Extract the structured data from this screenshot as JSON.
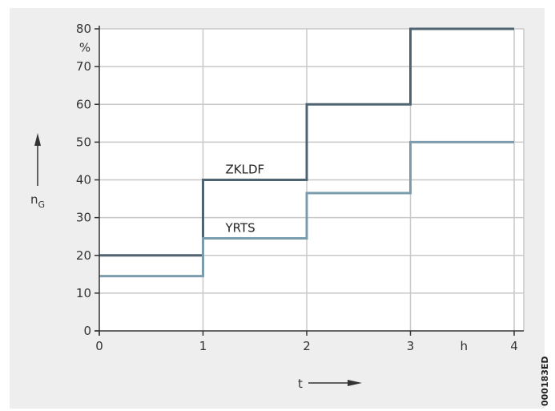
{
  "chart_data": {
    "type": "line",
    "step": true,
    "ylim": [
      0,
      80
    ],
    "xlim": [
      0,
      4
    ],
    "yticks": [
      0,
      10,
      20,
      30,
      40,
      50,
      60,
      70,
      80
    ],
    "xticks": [
      0,
      1,
      2,
      3,
      4
    ],
    "y_unit": "%",
    "x_unit": "h",
    "ylabel": "n",
    "ylabel_sub": "G",
    "xlabel": "t",
    "grid": true,
    "series": [
      {
        "name": "ZKLDF",
        "color": "#4f6370",
        "x": [
          0,
          1,
          2,
          3,
          4
        ],
        "values": [
          20,
          40,
          60,
          80,
          80
        ]
      },
      {
        "name": "YRTS",
        "color": "#7a9cad",
        "x": [
          0,
          1,
          2,
          3,
          4
        ],
        "values": [
          14.5,
          24.5,
          36.5,
          50,
          50
        ]
      }
    ]
  },
  "figure_code": "000183ED"
}
